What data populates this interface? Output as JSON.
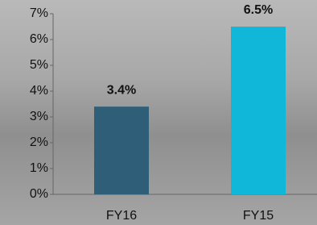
{
  "chart_data": {
    "type": "bar",
    "categories": [
      "FY16",
      "FY15"
    ],
    "values": [
      3.4,
      6.5
    ],
    "value_labels": [
      "3.4%",
      "6.5%"
    ],
    "colors": [
      "#2f5f78",
      "#11b7d8"
    ],
    "ylim": [
      0,
      7
    ],
    "yticks": [
      {
        "value": 0,
        "label": "0%"
      },
      {
        "value": 1,
        "label": "1%"
      },
      {
        "value": 2,
        "label": "2%"
      },
      {
        "value": 3,
        "label": "3%"
      },
      {
        "value": 4,
        "label": "4%"
      },
      {
        "value": 5,
        "label": "5%"
      },
      {
        "value": 6,
        "label": "6%"
      },
      {
        "value": 7,
        "label": "7%"
      }
    ],
    "grid": false
  }
}
